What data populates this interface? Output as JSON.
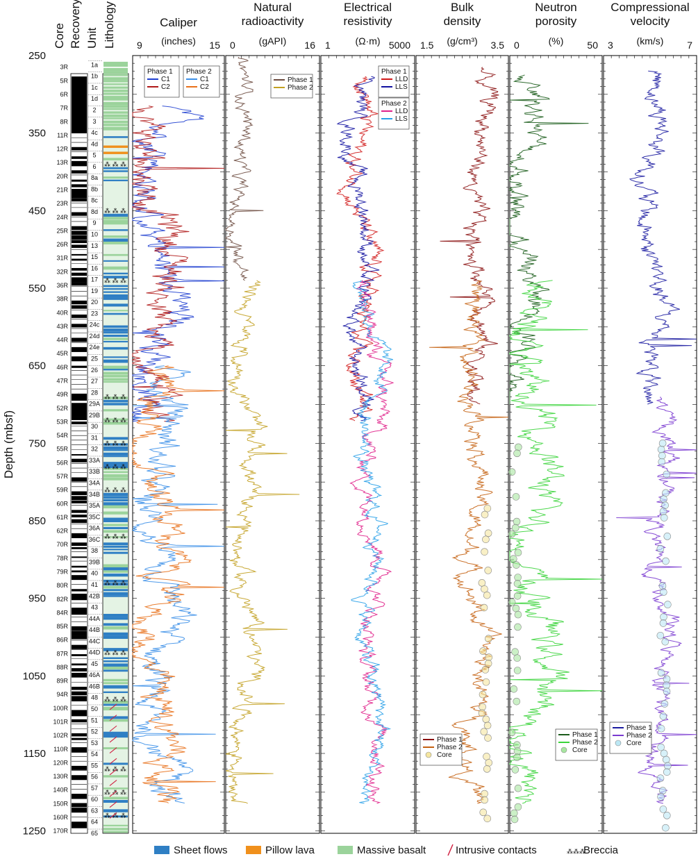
{
  "figure": {
    "y_axis_label": "Depth (mbsf)",
    "depth_ticks": [
      "250",
      "350",
      "450",
      "550",
      "650",
      "750",
      "850",
      "950",
      "1050",
      "1150",
      "1250"
    ],
    "column_headers": {
      "core": "Core",
      "recovery": "Recovery",
      "unit": "Unit",
      "lithology": "Lithology"
    },
    "bottom_legend": [
      {
        "label": "Sheet flows",
        "color": "#2f7fc4",
        "kind": "swatch"
      },
      {
        "label": "Pillow lava",
        "color": "#f0901c",
        "kind": "swatch"
      },
      {
        "label": "Massive basalt",
        "color": "#9bd39b",
        "kind": "swatch"
      },
      {
        "label": "Intrusive contacts",
        "color": "#d02040",
        "kind": "contact"
      },
      {
        "label": "Breccia",
        "color": "#333333",
        "kind": "breccia"
      }
    ],
    "cores": [
      "3R",
      "5R",
      "6R",
      "7R",
      "8R",
      "11R",
      "12R",
      "13R",
      "20R",
      "21R",
      "23R",
      "24R",
      "25R",
      "26R",
      "31R",
      "32R",
      "36R",
      "38R",
      "40R",
      "43R",
      "44R",
      "45R",
      "46R",
      "47R",
      "49R",
      "52R",
      "53R",
      "54R",
      "55R",
      "56R",
      "57R",
      "59R",
      "60R",
      "61R",
      "62R",
      "70R",
      "78R",
      "79R",
      "80R",
      "82R",
      "84R",
      "85R",
      "86R",
      "87R",
      "88R",
      "89R",
      "94R",
      "100R",
      "101R",
      "102R",
      "110R",
      "120R",
      "130R",
      "140R",
      "150R",
      "160R",
      "170R"
    ],
    "units": [
      "1a",
      "1b",
      "1c",
      "1d",
      "2",
      "3",
      "4c",
      "4d",
      "5",
      "6",
      "8a",
      "8b",
      "8c",
      "8d",
      "9",
      "10",
      "13",
      "15",
      "16",
      "17",
      "19",
      "20",
      "23",
      "24c",
      "24d",
      "24e",
      "25",
      "26",
      "27",
      "28",
      "29A",
      "29B",
      "30",
      "31",
      "32",
      "33A",
      "33B",
      "34A",
      "34B",
      "35A",
      "35C",
      "36A",
      "36C",
      "38",
      "39B",
      "40",
      "41",
      "42B",
      "43",
      "44A",
      "44B",
      "44C",
      "44D",
      "45",
      "46A",
      "46B",
      "48",
      "50",
      "51",
      "52",
      "53",
      "54",
      "55",
      "56",
      "57",
      "60",
      "63",
      "64",
      "65"
    ]
  },
  "chart_data": [
    {
      "type": "line",
      "title": "Caliper",
      "units": "(inches)",
      "xlim": [
        9,
        15
      ],
      "tick_labels": [
        "9",
        "15"
      ],
      "series": [
        {
          "name": "C1",
          "phase": "Phase 1",
          "color": "#1f3fd0",
          "depth_range": [
            315,
            722
          ],
          "base": 10.6,
          "amp": 1.6
        },
        {
          "name": "C2",
          "phase": "Phase 1",
          "color": "#b01818",
          "depth_range": [
            315,
            722
          ],
          "base": 10.7,
          "amp": 1.8
        },
        {
          "name": "C1",
          "phase": "Phase 2",
          "color": "#3b8fe8",
          "depth_range": [
            650,
            1215
          ],
          "base": 10.8,
          "amp": 1.5
        },
        {
          "name": "C2",
          "phase": "Phase 2",
          "color": "#e8701a",
          "depth_range": [
            650,
            1215
          ],
          "base": 10.6,
          "amp": 1.5
        }
      ],
      "legend": [
        "Phase 1",
        "Phase 2"
      ]
    },
    {
      "type": "line",
      "title": "Natural\nradioactivity",
      "units": "(gAPI)",
      "xlim": [
        0,
        16
      ],
      "tick_labels": [
        "0",
        "16"
      ],
      "series": [
        {
          "name": "Phase 1",
          "color": "#6b4a3e",
          "depth_range": [
            252,
            540
          ],
          "base": 2.5,
          "amp": 1.8
        },
        {
          "name": "Phase 2",
          "color": "#c2a020",
          "depth_range": [
            540,
            1215
          ],
          "base": 3.5,
          "amp": 2.2
        }
      ]
    },
    {
      "type": "line",
      "title": "Electrical\nresistivity",
      "units": "(Ω·m)",
      "xlim": [
        1,
        5000
      ],
      "scale": "log",
      "tick_labels": [
        "1",
        "5000"
      ],
      "series": [
        {
          "name": "LLD",
          "phase": "Phase 1",
          "color": "#d01818",
          "depth_range": [
            277,
            722
          ],
          "base": 40,
          "amp": 0.5
        },
        {
          "name": "LLS",
          "phase": "Phase 1",
          "color": "#1010a0",
          "depth_range": [
            277,
            722
          ],
          "base": 35,
          "amp": 0.5
        },
        {
          "name": "LLD",
          "phase": "Phase 2",
          "color": "#e0208a",
          "depth_range": [
            540,
            1215
          ],
          "base": 120,
          "amp": 0.45
        },
        {
          "name": "LLS",
          "phase": "Phase 2",
          "color": "#28a0e8",
          "depth_range": [
            540,
            1215
          ],
          "base": 100,
          "amp": 0.45
        }
      ]
    },
    {
      "type": "line",
      "title": "Bulk\ndensity",
      "units": "(g/cm³)",
      "xlim": [
        1.5,
        3.5
      ],
      "tick_labels": [
        "1.5",
        "3.5"
      ],
      "series": [
        {
          "name": "Phase 1",
          "color": "#8a1010",
          "depth_range": [
            265,
            700
          ],
          "base": 2.85,
          "amp": 0.3
        },
        {
          "name": "Phase 2",
          "color": "#c46010",
          "depth_range": [
            540,
            1215
          ],
          "base": 2.8,
          "amp": 0.3
        }
      ],
      "core_points": {
        "name": "Core",
        "color": "#f5e6a0",
        "depth_range": [
          810,
          1250
        ],
        "value": 3.0
      },
      "legend": [
        "Phase 1",
        "Phase 2",
        "Core"
      ]
    },
    {
      "type": "line",
      "title": "Neutron\nporosity",
      "units": "(%)",
      "xlim": [
        0,
        50
      ],
      "tick_labels": [
        "0",
        "50"
      ],
      "series": [
        {
          "name": "Phase 1",
          "color": "#1a5c1a",
          "depth_range": [
            275,
            700
          ],
          "base": 8,
          "amp": 10
        },
        {
          "name": "Phase 2",
          "color": "#3ad43a",
          "depth_range": [
            540,
            1215
          ],
          "base": 14,
          "amp": 12
        }
      ],
      "core_points": {
        "name": "Core",
        "color": "#a8e6a0",
        "depth_range": [
          755,
          1250
        ],
        "value": 3
      },
      "legend": [
        "Phase 1",
        "Phase 2",
        "Core"
      ]
    },
    {
      "type": "line",
      "title": "Compressional\nvelocity",
      "units": "(km/s)",
      "xlim": [
        3,
        7
      ],
      "tick_labels": [
        "3",
        "7"
      ],
      "series": [
        {
          "name": "Phase 1",
          "color": "#1a1aa0",
          "depth_range": [
            270,
            700
          ],
          "base": 5.1,
          "amp": 0.7
        },
        {
          "name": "Phase 2",
          "color": "#7a3ad0",
          "depth_range": [
            690,
            1215
          ],
          "base": 5.5,
          "amp": 0.55
        }
      ],
      "core_points": {
        "name": "Core",
        "color": "#bce8f5",
        "depth_range": [
          750,
          1250
        ],
        "value": 5.6
      },
      "legend": [
        "Phase 1",
        "Phase 2",
        "Core"
      ]
    }
  ]
}
